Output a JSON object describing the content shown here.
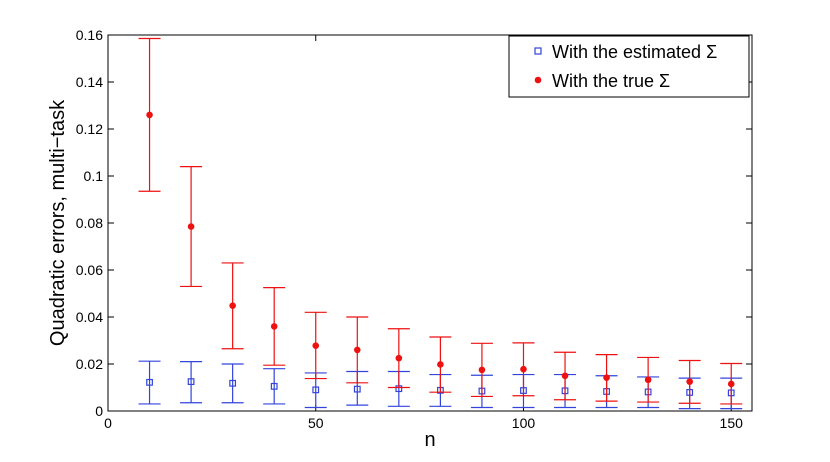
{
  "chart_data": {
    "type": "scatter",
    "title": "",
    "xlabel": "n",
    "ylabel": "Quadratic errors, multi−task",
    "xlim": [
      0,
      155
    ],
    "ylim": [
      0,
      0.16
    ],
    "xticks": [
      0,
      50,
      100,
      150
    ],
    "xtick_labels": [
      "0",
      "50",
      "100",
      "150"
    ],
    "yticks": [
      0,
      0.02,
      0.04,
      0.06,
      0.08,
      0.1,
      0.12,
      0.14,
      0.16
    ],
    "ytick_labels": [
      "0",
      "0.02",
      "0.04",
      "0.06",
      "0.08",
      "0.1",
      "0.12",
      "0.14",
      "0.16"
    ],
    "grid": false,
    "legend_position": "top-right",
    "series": [
      {
        "name": "With the estimated Σ",
        "color": "#3344dd",
        "marker": "square",
        "x": [
          10,
          20,
          30,
          40,
          50,
          60,
          70,
          80,
          90,
          100,
          110,
          120,
          130,
          140,
          150
        ],
        "y": [
          0.0122,
          0.0125,
          0.0118,
          0.0105,
          0.009,
          0.0093,
          0.0095,
          0.0088,
          0.0085,
          0.0087,
          0.0086,
          0.0083,
          0.0081,
          0.0079,
          0.0077
        ],
        "lower": [
          0.003,
          0.0035,
          0.0035,
          0.003,
          0.0015,
          0.0025,
          0.002,
          0.002,
          0.0015,
          0.0015,
          0.0015,
          0.0015,
          0.0015,
          0.001,
          0.001
        ],
        "upper": [
          0.0212,
          0.021,
          0.02,
          0.018,
          0.0162,
          0.0168,
          0.0168,
          0.0155,
          0.0152,
          0.0155,
          0.0155,
          0.015,
          0.0145,
          0.014,
          0.014
        ]
      },
      {
        "name": "With the true Σ",
        "color": "#ee1111",
        "marker": "circle",
        "x": [
          10,
          20,
          30,
          40,
          50,
          60,
          70,
          80,
          90,
          100,
          110,
          120,
          130,
          140,
          150
        ],
        "y": [
          0.126,
          0.0785,
          0.0448,
          0.036,
          0.0278,
          0.026,
          0.0225,
          0.0198,
          0.0175,
          0.0178,
          0.015,
          0.0142,
          0.0133,
          0.0125,
          0.0115
        ],
        "lower": [
          0.0935,
          0.053,
          0.0265,
          0.0195,
          0.0138,
          0.012,
          0.01,
          0.008,
          0.0062,
          0.0065,
          0.0048,
          0.0042,
          0.0038,
          0.0033,
          0.003
        ],
        "upper": [
          0.1585,
          0.104,
          0.063,
          0.0525,
          0.042,
          0.04,
          0.035,
          0.0315,
          0.0288,
          0.029,
          0.025,
          0.024,
          0.0228,
          0.0215,
          0.0202
        ]
      }
    ]
  }
}
